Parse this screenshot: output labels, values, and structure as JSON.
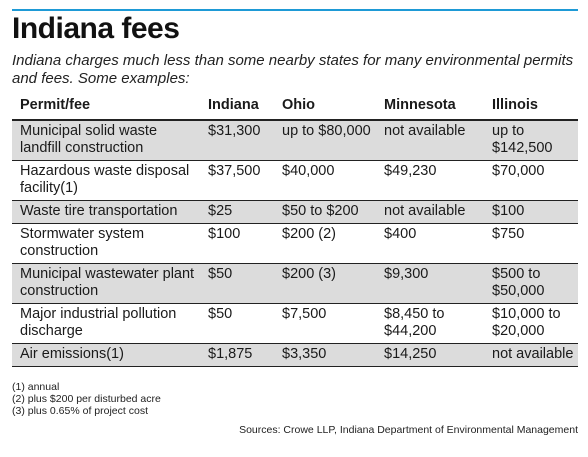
{
  "header": {
    "title": "Indiana fees",
    "subtitle": "Indiana charges much less than some nearby states for many environmental permits and fees. Some examples:"
  },
  "table": {
    "columns": [
      "Permit/fee",
      "Indiana",
      "Ohio",
      "Minnesota",
      "Illinois"
    ],
    "rows": [
      [
        "Municipal solid waste landfill construction",
        "$31,300",
        "up to $80,000",
        "not available",
        "up to $142,500"
      ],
      [
        "Hazardous waste disposal facility(1)",
        "$37,500",
        "$40,000",
        "$49,230",
        "$70,000"
      ],
      [
        "Waste tire transportation",
        "$25",
        "$50 to $200",
        "not available",
        "$100"
      ],
      [
        "Stormwater system construction",
        "$100",
        "$200 (2)",
        "$400",
        "$750"
      ],
      [
        "Municipal wastewater plant construction",
        "$50",
        "$200 (3)",
        "$9,300",
        "$500 to $50,000"
      ],
      [
        "Major industrial pollution discharge",
        "$50",
        "$7,500",
        "$8,450 to $44,200",
        "$10,000 to $20,000"
      ],
      [
        "Air emissions(1)",
        "$1,875",
        "$3,350",
        "$14,250",
        "not available"
      ]
    ]
  },
  "notes": [
    "(1) annual",
    "(2) plus $200 per disturbed acre",
    "(3) plus 0.65% of project cost"
  ],
  "sources": "Sources: Crowe LLP, Indiana Department of Environmental Management",
  "colors": {
    "accent_rule": "#1e9ad6",
    "shaded_row": "#dcdcdc"
  }
}
